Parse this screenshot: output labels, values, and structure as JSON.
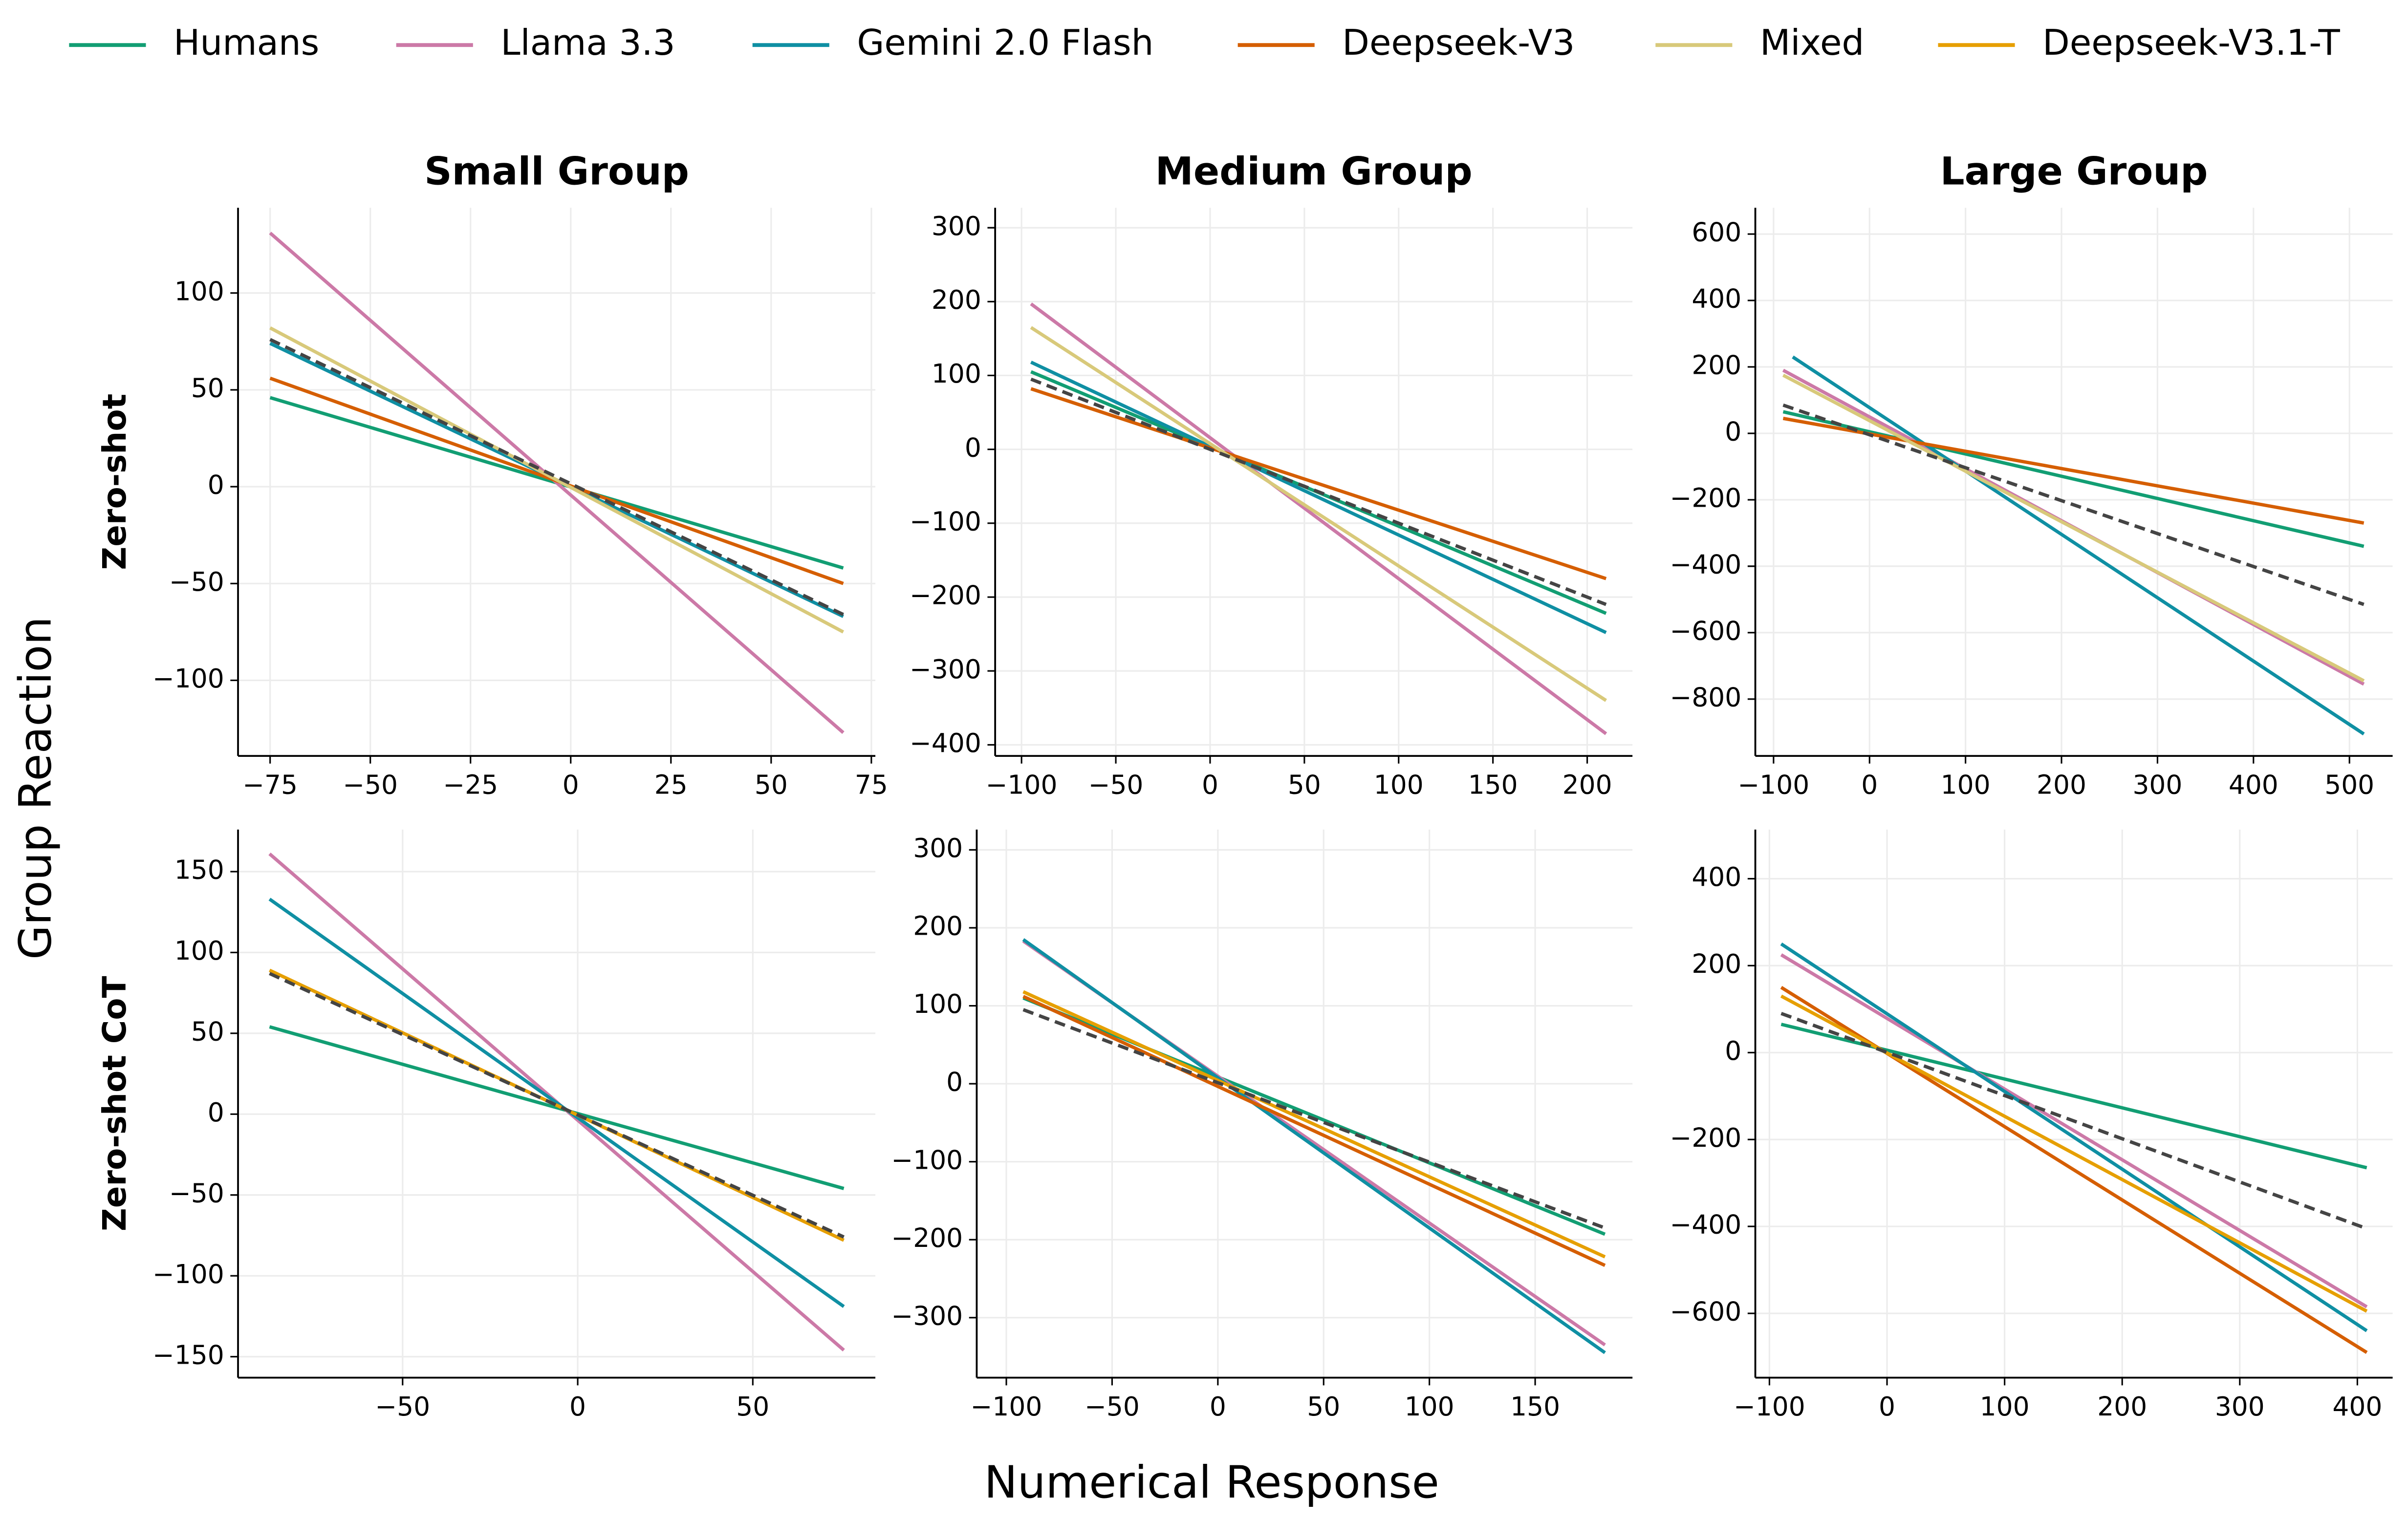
{
  "x_label": "Numerical Response",
  "y_label": "Group Reaction",
  "legend": [
    {
      "name": "Humans",
      "color": "#129e73"
    },
    {
      "name": "Llama 3.3",
      "color": "#cc79a7"
    },
    {
      "name": "Gemini 2.0 Flash",
      "color": "#0f8fa3"
    },
    {
      "name": "Deepseek-V3",
      "color": "#d55e00"
    },
    {
      "name": "Mixed",
      "color": "#d8c97a"
    },
    {
      "name": "Deepseek-V3.1-T",
      "color": "#e69f00"
    }
  ],
  "chart_data": [
    {
      "type": "line",
      "title": "Small Group",
      "ylabel": "Zero-shot",
      "grid": true,
      "xlim": [
        -83,
        76
      ],
      "ylim": [
        -139,
        144
      ],
      "xticks": [
        {
          "value": -75,
          "label": "−75"
        },
        {
          "value": -50,
          "label": "−50"
        },
        {
          "value": -25,
          "label": "−25"
        },
        0,
        25,
        50,
        75
      ],
      "yticks": [
        {
          "value": -100,
          "label": "−100"
        },
        {
          "value": -50,
          "label": "−50"
        },
        0,
        50,
        100
      ],
      "series": [
        {
          "name": "Humans",
          "x": [
            -75,
            68
          ],
          "values": [
            46,
            -42
          ]
        },
        {
          "name": "Llama 3.3",
          "x": [
            -75,
            68
          ],
          "values": [
            131,
            -127
          ]
        },
        {
          "name": "Gemini 2.0 Flash",
          "x": [
            -75,
            68
          ],
          "values": [
            74,
            -67
          ]
        },
        {
          "name": "Deepseek-V3",
          "x": [
            -75,
            68
          ],
          "values": [
            56,
            -50
          ]
        },
        {
          "name": "Mixed",
          "x": [
            -75,
            68
          ],
          "values": [
            82,
            -75
          ]
        },
        {
          "color": "#444444",
          "dash": true,
          "x": [
            -75,
            68
          ],
          "values": [
            76,
            -66
          ]
        }
      ]
    },
    {
      "type": "line",
      "title": "Medium Group",
      "grid": true,
      "xlim": [
        -114,
        224
      ],
      "ylim": [
        -415,
        327
      ],
      "xticks": [
        {
          "value": -100,
          "label": "−100"
        },
        {
          "value": -50,
          "label": "−50"
        },
        0,
        50,
        100,
        150,
        200
      ],
      "yticks": [
        {
          "value": -400,
          "label": "−400"
        },
        {
          "value": -300,
          "label": "−300"
        },
        {
          "value": -200,
          "label": "−200"
        },
        {
          "value": -100,
          "label": "−100"
        },
        0,
        100,
        200,
        300
      ],
      "series": [
        {
          "name": "Humans",
          "x": [
            -95,
            210
          ],
          "values": [
            105,
            -222
          ]
        },
        {
          "name": "Llama 3.3",
          "x": [
            -95,
            210
          ],
          "values": [
            197,
            -385
          ]
        },
        {
          "name": "Gemini 2.0 Flash",
          "x": [
            -95,
            210
          ],
          "values": [
            118,
            -248
          ]
        },
        {
          "name": "Deepseek-V3",
          "x": [
            -95,
            210
          ],
          "values": [
            82,
            -175
          ]
        },
        {
          "name": "Mixed",
          "x": [
            -95,
            210
          ],
          "values": [
            165,
            -340
          ]
        },
        {
          "color": "#444444",
          "dash": true,
          "x": [
            -95,
            210
          ],
          "values": [
            95,
            -210
          ]
        }
      ]
    },
    {
      "type": "line",
      "title": "Large Group",
      "grid": true,
      "xlim": [
        -119,
        545
      ],
      "ylim": [
        -971,
        679
      ],
      "xticks": [
        {
          "value": -100,
          "label": "−100"
        },
        0,
        100,
        200,
        300,
        400,
        500
      ],
      "yticks": [
        {
          "value": -800,
          "label": "−800"
        },
        {
          "value": -600,
          "label": "−600"
        },
        {
          "value": -400,
          "label": "−400"
        },
        {
          "value": -200,
          "label": "−200"
        },
        0,
        200,
        400,
        600
      ],
      "series": [
        {
          "name": "Humans",
          "x": [
            -90,
            515
          ],
          "values": [
            65,
            -340
          ]
        },
        {
          "name": "Llama 3.3",
          "x": [
            -90,
            515
          ],
          "values": [
            190,
            -755
          ]
        },
        {
          "name": "Gemini 2.0 Flash",
          "x": [
            -80,
            515
          ],
          "values": [
            230,
            -905
          ]
        },
        {
          "name": "Deepseek-V3",
          "x": [
            -90,
            515
          ],
          "values": [
            45,
            -270
          ]
        },
        {
          "name": "Mixed",
          "x": [
            -90,
            515
          ],
          "values": [
            175,
            -745
          ]
        },
        {
          "color": "#444444",
          "dash": true,
          "x": [
            -90,
            515
          ],
          "values": [
            85,
            -515
          ]
        }
      ]
    },
    {
      "type": "line",
      "ylabel": "Zero-shot CoT",
      "grid": true,
      "xlim": [
        -97,
        85
      ],
      "ylim": [
        -163,
        176
      ],
      "xticks": [
        {
          "value": -50,
          "label": "−50"
        },
        0,
        50
      ],
      "yticks": [
        {
          "value": -150,
          "label": "−150"
        },
        {
          "value": -100,
          "label": "−100"
        },
        {
          "value": -50,
          "label": "−50"
        },
        0,
        50,
        100,
        150
      ],
      "series": [
        {
          "name": "Humans",
          "x": [
            -88,
            76
          ],
          "values": [
            54,
            -46
          ]
        },
        {
          "name": "Llama 3.3",
          "x": [
            -88,
            76
          ],
          "values": [
            161,
            -146
          ]
        },
        {
          "name": "Gemini 2.0 Flash",
          "x": [
            -88,
            76
          ],
          "values": [
            133,
            -119
          ]
        },
        {
          "name": "Deepseek-V3.1-T",
          "x": [
            -88,
            76
          ],
          "values": [
            89,
            -78
          ]
        },
        {
          "color": "#444444",
          "dash": true,
          "x": [
            -88,
            76
          ],
          "values": [
            87,
            -76
          ]
        }
      ]
    },
    {
      "type": "line",
      "grid": true,
      "xlim": [
        -114,
        196
      ],
      "ylim": [
        -377,
        326
      ],
      "xticks": [
        {
          "value": -100,
          "label": "−100"
        },
        {
          "value": -50,
          "label": "−50"
        },
        0,
        50,
        100,
        150
      ],
      "yticks": [
        {
          "value": -300,
          "label": "−300"
        },
        {
          "value": -200,
          "label": "−200"
        },
        {
          "value": -100,
          "label": "−100"
        },
        0,
        100,
        200,
        300
      ],
      "series": [
        {
          "name": "Humans",
          "x": [
            -92,
            183
          ],
          "values": [
            110,
            -193
          ]
        },
        {
          "name": "Llama 3.3",
          "x": [
            -92,
            183
          ],
          "values": [
            183,
            -335
          ]
        },
        {
          "name": "Gemini 2.0 Flash",
          "x": [
            -92,
            183
          ],
          "values": [
            185,
            -345
          ]
        },
        {
          "name": "Deepseek-V3",
          "x": [
            -92,
            183
          ],
          "values": [
            112,
            -233
          ]
        },
        {
          "name": "Deepseek-V3.1-T",
          "x": [
            -92,
            183
          ],
          "values": [
            118,
            -222
          ]
        },
        {
          "color": "#444444",
          "dash": true,
          "x": [
            -92,
            183
          ],
          "values": [
            95,
            -185
          ]
        }
      ]
    },
    {
      "type": "line",
      "grid": true,
      "xlim": [
        -112,
        430
      ],
      "ylim": [
        -748,
        513
      ],
      "xticks": [
        {
          "value": -100,
          "label": "−100"
        },
        0,
        100,
        200,
        300,
        400
      ],
      "yticks": [
        {
          "value": -600,
          "label": "−600"
        },
        {
          "value": -400,
          "label": "−400"
        },
        {
          "value": -200,
          "label": "−200"
        },
        0,
        200,
        400
      ],
      "series": [
        {
          "name": "Humans",
          "x": [
            -90,
            408
          ],
          "values": [
            65,
            -265
          ]
        },
        {
          "name": "Llama 3.3",
          "x": [
            -90,
            408
          ],
          "values": [
            225,
            -585
          ]
        },
        {
          "name": "Gemini 2.0 Flash",
          "x": [
            -90,
            408
          ],
          "values": [
            250,
            -640
          ]
        },
        {
          "name": "Deepseek-V3",
          "x": [
            -90,
            408
          ],
          "values": [
            150,
            -690
          ]
        },
        {
          "name": "Deepseek-V3.1-T",
          "x": [
            -90,
            408
          ],
          "values": [
            130,
            -595
          ]
        },
        {
          "color": "#444444",
          "dash": true,
          "x": [
            -90,
            408
          ],
          "values": [
            90,
            -405
          ]
        }
      ]
    }
  ]
}
